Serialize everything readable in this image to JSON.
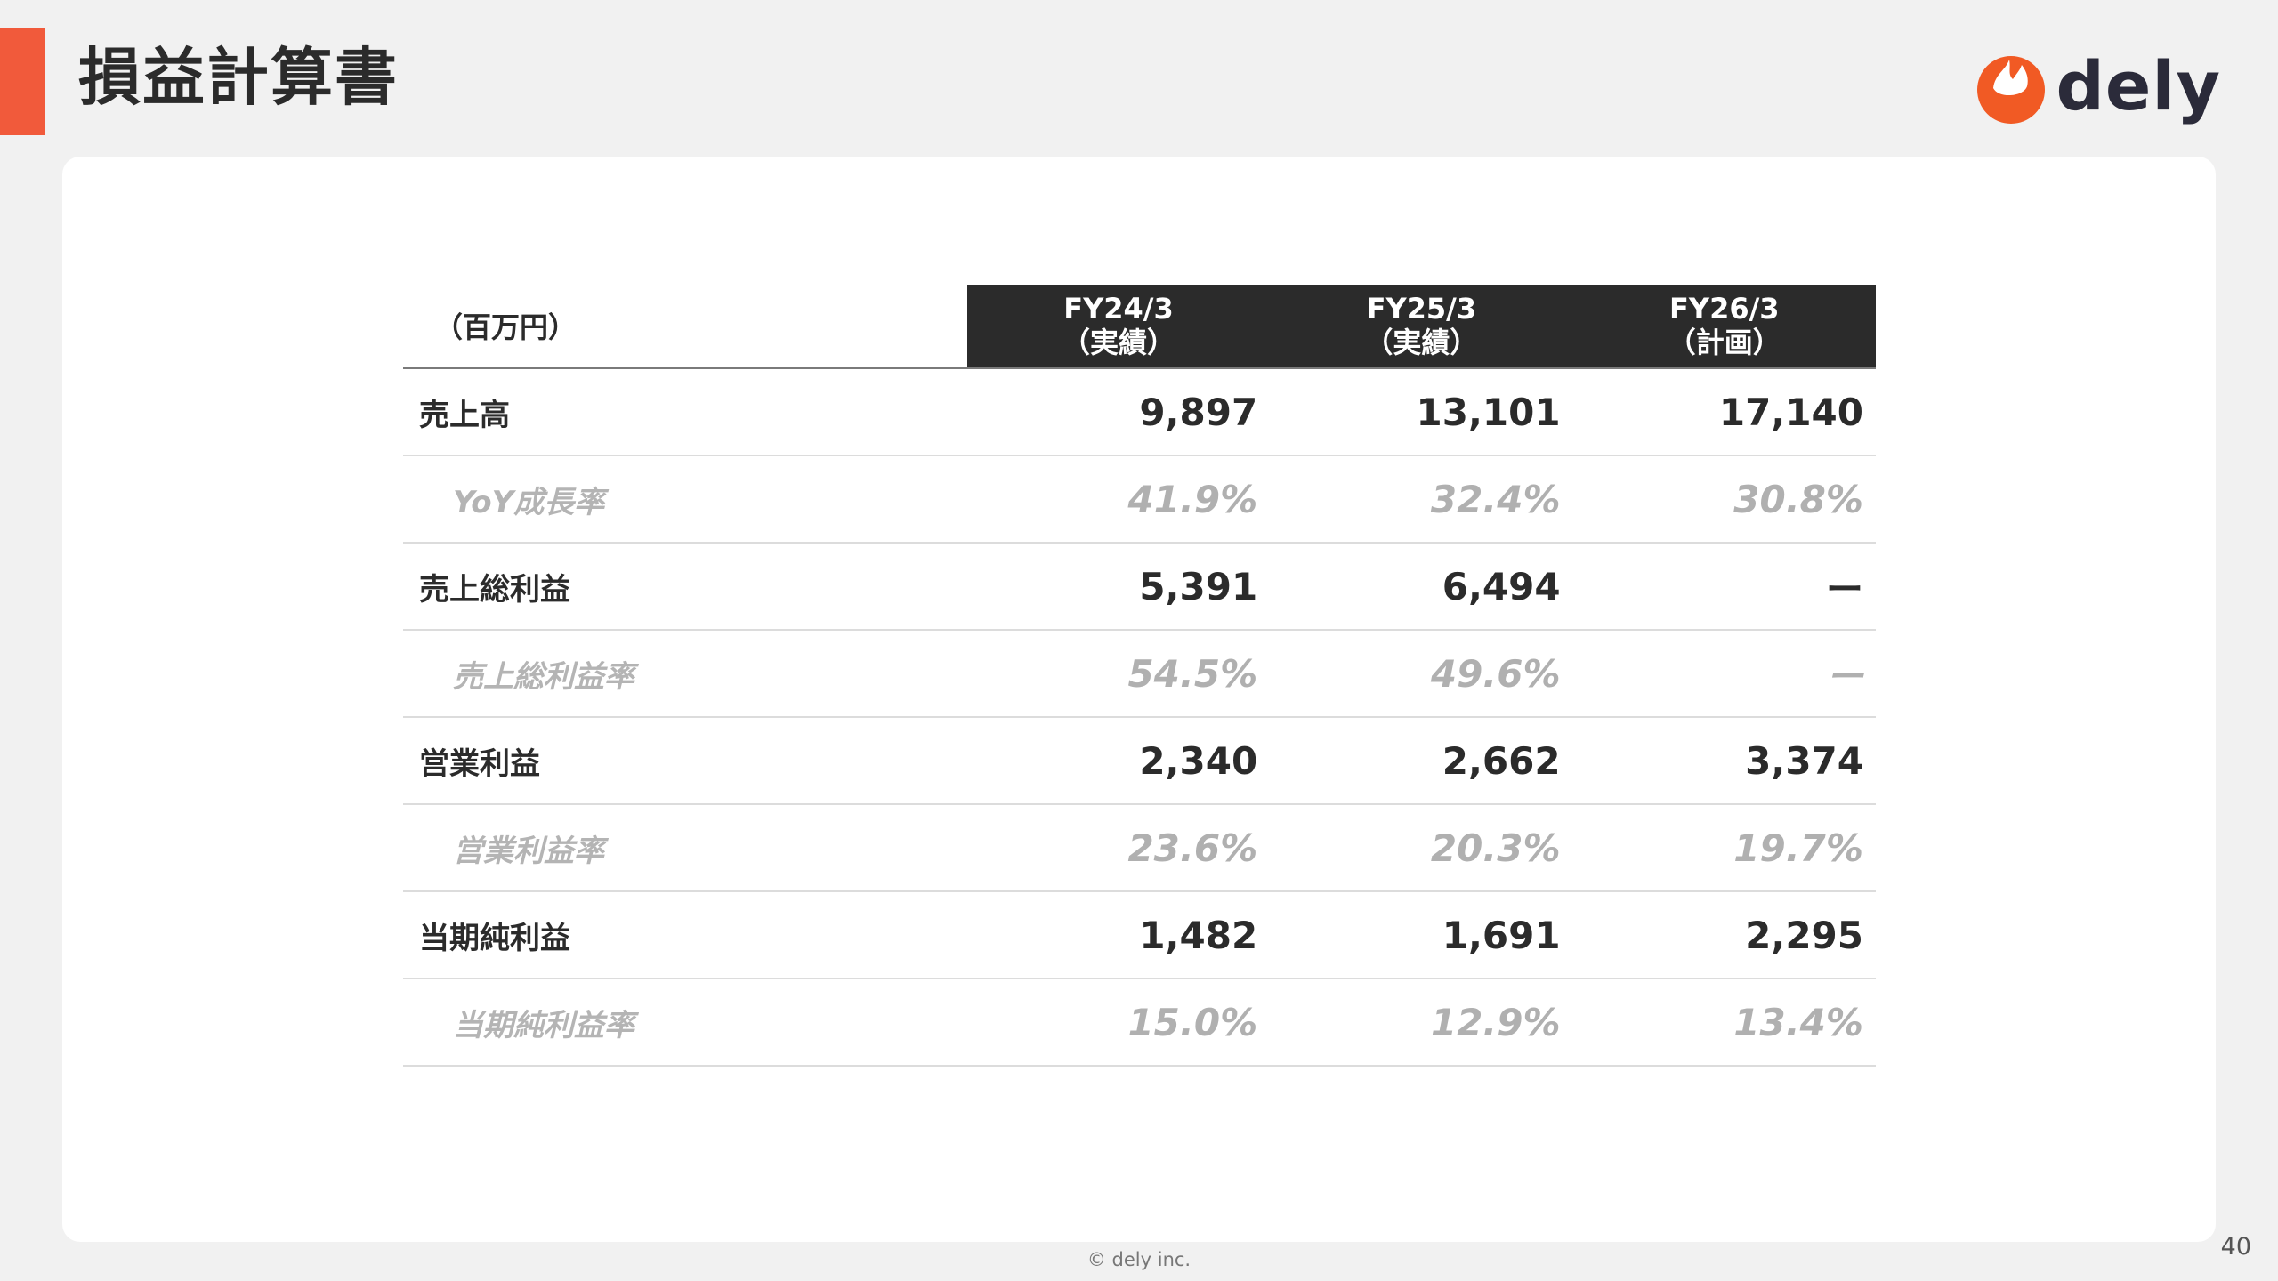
{
  "title": "損益計算書",
  "accent_color": "#f15a3b",
  "logo": {
    "icon": "dely-flame-logo-icon",
    "text": "dely",
    "color": "#f15a24"
  },
  "table": {
    "unit_label": "（百万円）",
    "periods": [
      {
        "year": "FY24/3",
        "type": "（実績）"
      },
      {
        "year": "FY25/3",
        "type": "（実績）"
      },
      {
        "year": "FY26/3",
        "type": "（計画）"
      }
    ],
    "rows": [
      {
        "label": "売上高",
        "kind": "main",
        "values": [
          "9,897",
          "13,101",
          "17,140"
        ]
      },
      {
        "label": "YoY成長率",
        "kind": "sub",
        "values": [
          "41.9%",
          "32.4%",
          "30.8%"
        ]
      },
      {
        "label": "売上総利益",
        "kind": "main",
        "values": [
          "5,391",
          "6,494",
          "ー"
        ]
      },
      {
        "label": "売上総利益率",
        "kind": "sub",
        "values": [
          "54.5%",
          "49.6%",
          "ー"
        ]
      },
      {
        "label": "営業利益",
        "kind": "main",
        "values": [
          "2,340",
          "2,662",
          "3,374"
        ]
      },
      {
        "label": "営業利益率",
        "kind": "sub",
        "values": [
          "23.6%",
          "20.3%",
          "19.7%"
        ]
      },
      {
        "label": "当期純利益",
        "kind": "main",
        "values": [
          "1,482",
          "1,691",
          "2,295"
        ]
      },
      {
        "label": "当期純利益率",
        "kind": "sub",
        "values": [
          "15.0%",
          "12.9%",
          "13.4%"
        ]
      }
    ]
  },
  "footer": {
    "copyright": "© dely inc.",
    "page_number": "40"
  }
}
